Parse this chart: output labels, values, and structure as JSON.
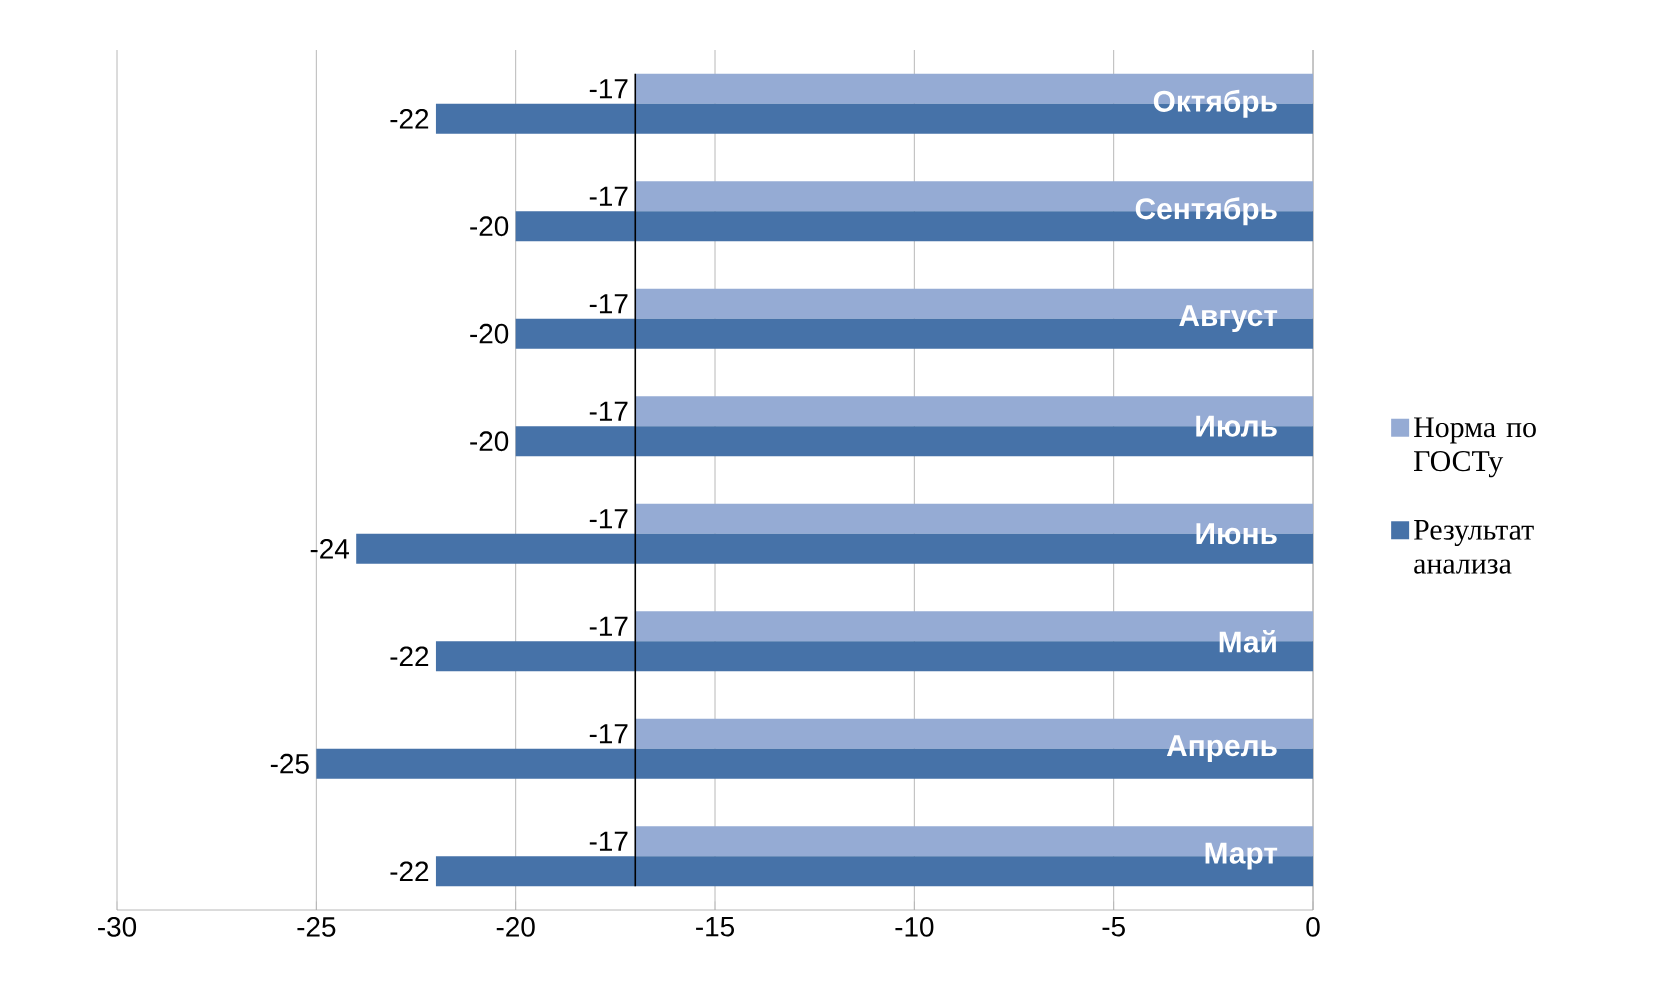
{
  "chart_data": {
    "type": "bar",
    "orientation": "horizontal",
    "categories": [
      "Октябрь",
      "Сентябрь",
      "Август",
      "Июль",
      "Июнь",
      "Май",
      "Апрель",
      "Март"
    ],
    "series": [
      {
        "name": "Норма по ГОСТу",
        "color": "#95abd4",
        "values": [
          -17,
          -17,
          -17,
          -17,
          -17,
          -17,
          -17,
          -17
        ]
      },
      {
        "name": "Результат анализа",
        "color": "#4672a8",
        "values": [
          -22,
          -20,
          -20,
          -20,
          -24,
          -22,
          -25,
          -22
        ]
      }
    ],
    "xlim": [
      -30,
      0
    ],
    "xticks": [
      -30,
      -25,
      -20,
      -15,
      -10,
      -5,
      0
    ],
    "grid": "x",
    "legend": "right",
    "data_labels": true,
    "ref_lines": [
      {
        "axis": "x",
        "value": -17,
        "color": "#000000"
      }
    ]
  }
}
